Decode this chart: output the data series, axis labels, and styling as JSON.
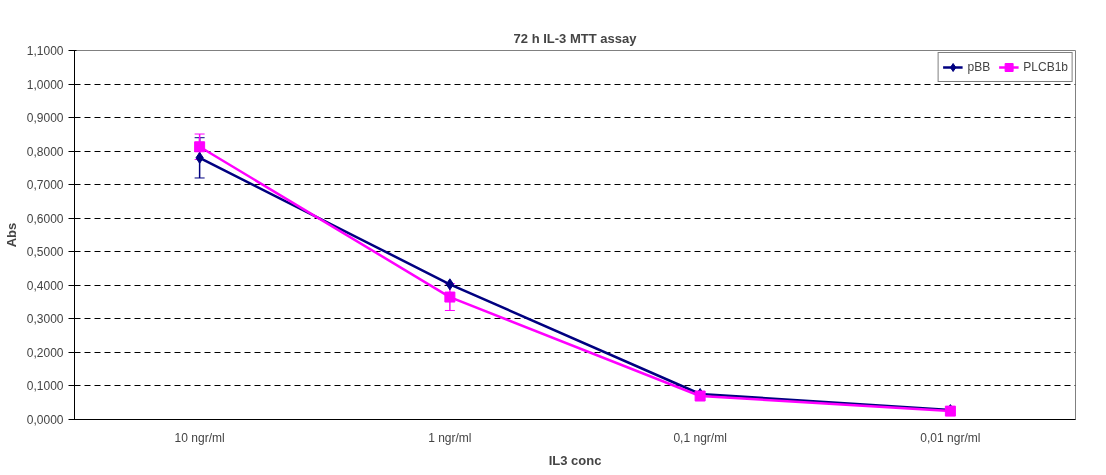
{
  "chart_data": {
    "type": "line",
    "title": "72 h IL-3 MTT assay",
    "xlabel": "IL3 conc",
    "ylabel": "Abs",
    "categories": [
      "10 ngr/ml",
      "1 ngr/ml",
      "0,1 ngr/ml",
      "0,01 ngr/ml"
    ],
    "series": [
      {
        "name": "pBB",
        "color": "#000080",
        "marker": "diamond",
        "values": [
          0.78,
          0.403,
          0.076,
          0.028
        ],
        "errors": [
          0.06,
          null,
          null,
          null
        ]
      },
      {
        "name": "PLCB1b",
        "color": "#ff00ff",
        "marker": "square",
        "values": [
          0.813,
          0.365,
          0.07,
          0.025
        ],
        "errors": [
          0.038,
          0.04,
          null,
          null
        ]
      }
    ],
    "ylim": [
      0,
      1.1
    ],
    "yticks": [
      {
        "value": 0,
        "label": "0,0000"
      },
      {
        "value": 0.1,
        "label": "0,1000"
      },
      {
        "value": 0.2,
        "label": "0,2000"
      },
      {
        "value": 0.3,
        "label": "0,3000"
      },
      {
        "value": 0.4,
        "label": "0,4000"
      },
      {
        "value": 0.5,
        "label": "0,5000"
      },
      {
        "value": 0.6,
        "label": "0,6000"
      },
      {
        "value": 0.7,
        "label": "0,7000"
      },
      {
        "value": 0.8,
        "label": "0,8000"
      },
      {
        "value": 0.9,
        "label": "0,9000"
      },
      {
        "value": 1.0,
        "label": "1,0000"
      },
      {
        "value": 1.1,
        "label": "1,1000"
      }
    ],
    "grid": "y",
    "legend": "top right",
    "line_style": "solid"
  }
}
